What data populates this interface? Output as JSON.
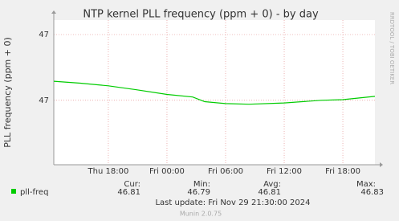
{
  "chart_data": {
    "type": "line",
    "title": "NTP kernel PLL frequency (ppm + 0) - by day",
    "y_label": "PLL frequency (ppm + 0)",
    "side_label": "RRDTOOL / TOBI OETIKER",
    "x": [
      "Thu 12:25",
      "Thu 15:08",
      "Thu 18:00",
      "Thu 20:53",
      "Fri 00:00",
      "Fri 02:38",
      "Fri 03:52",
      "Fri 06:00",
      "Fri 08:23",
      "Fri 12:00",
      "Fri 15:47",
      "Fri 18:00",
      "Fri 21:17"
    ],
    "xlim": [
      "Thu 12:25",
      "Fri 21:17"
    ],
    "xticks": [
      "Thu 18:00",
      "Fri 00:00",
      "Fri 06:00",
      "Fri 12:00",
      "Fri 18:00"
    ],
    "ylim": [
      46.702,
      46.922
    ],
    "yticks": [
      {
        "value": 46.8,
        "label": "47"
      },
      {
        "value": 46.9,
        "label": "47"
      }
    ],
    "grid": true,
    "series": [
      {
        "name": "pll-freq",
        "color": "#00cc00",
        "values": [
          46.829,
          46.826,
          46.822,
          46.816,
          46.809,
          46.805,
          46.798,
          46.795,
          46.794,
          46.796,
          46.8,
          46.801,
          46.806
        ]
      }
    ],
    "summary": {
      "headers": [
        "Cur:",
        "Min:",
        "Avg:",
        "Max:"
      ],
      "values": [
        46.81,
        46.79,
        46.81,
        46.83
      ]
    },
    "last_update": "Last update: Fri Nov 29 21:30:00 2024",
    "footer": "Munin 2.0.75"
  }
}
